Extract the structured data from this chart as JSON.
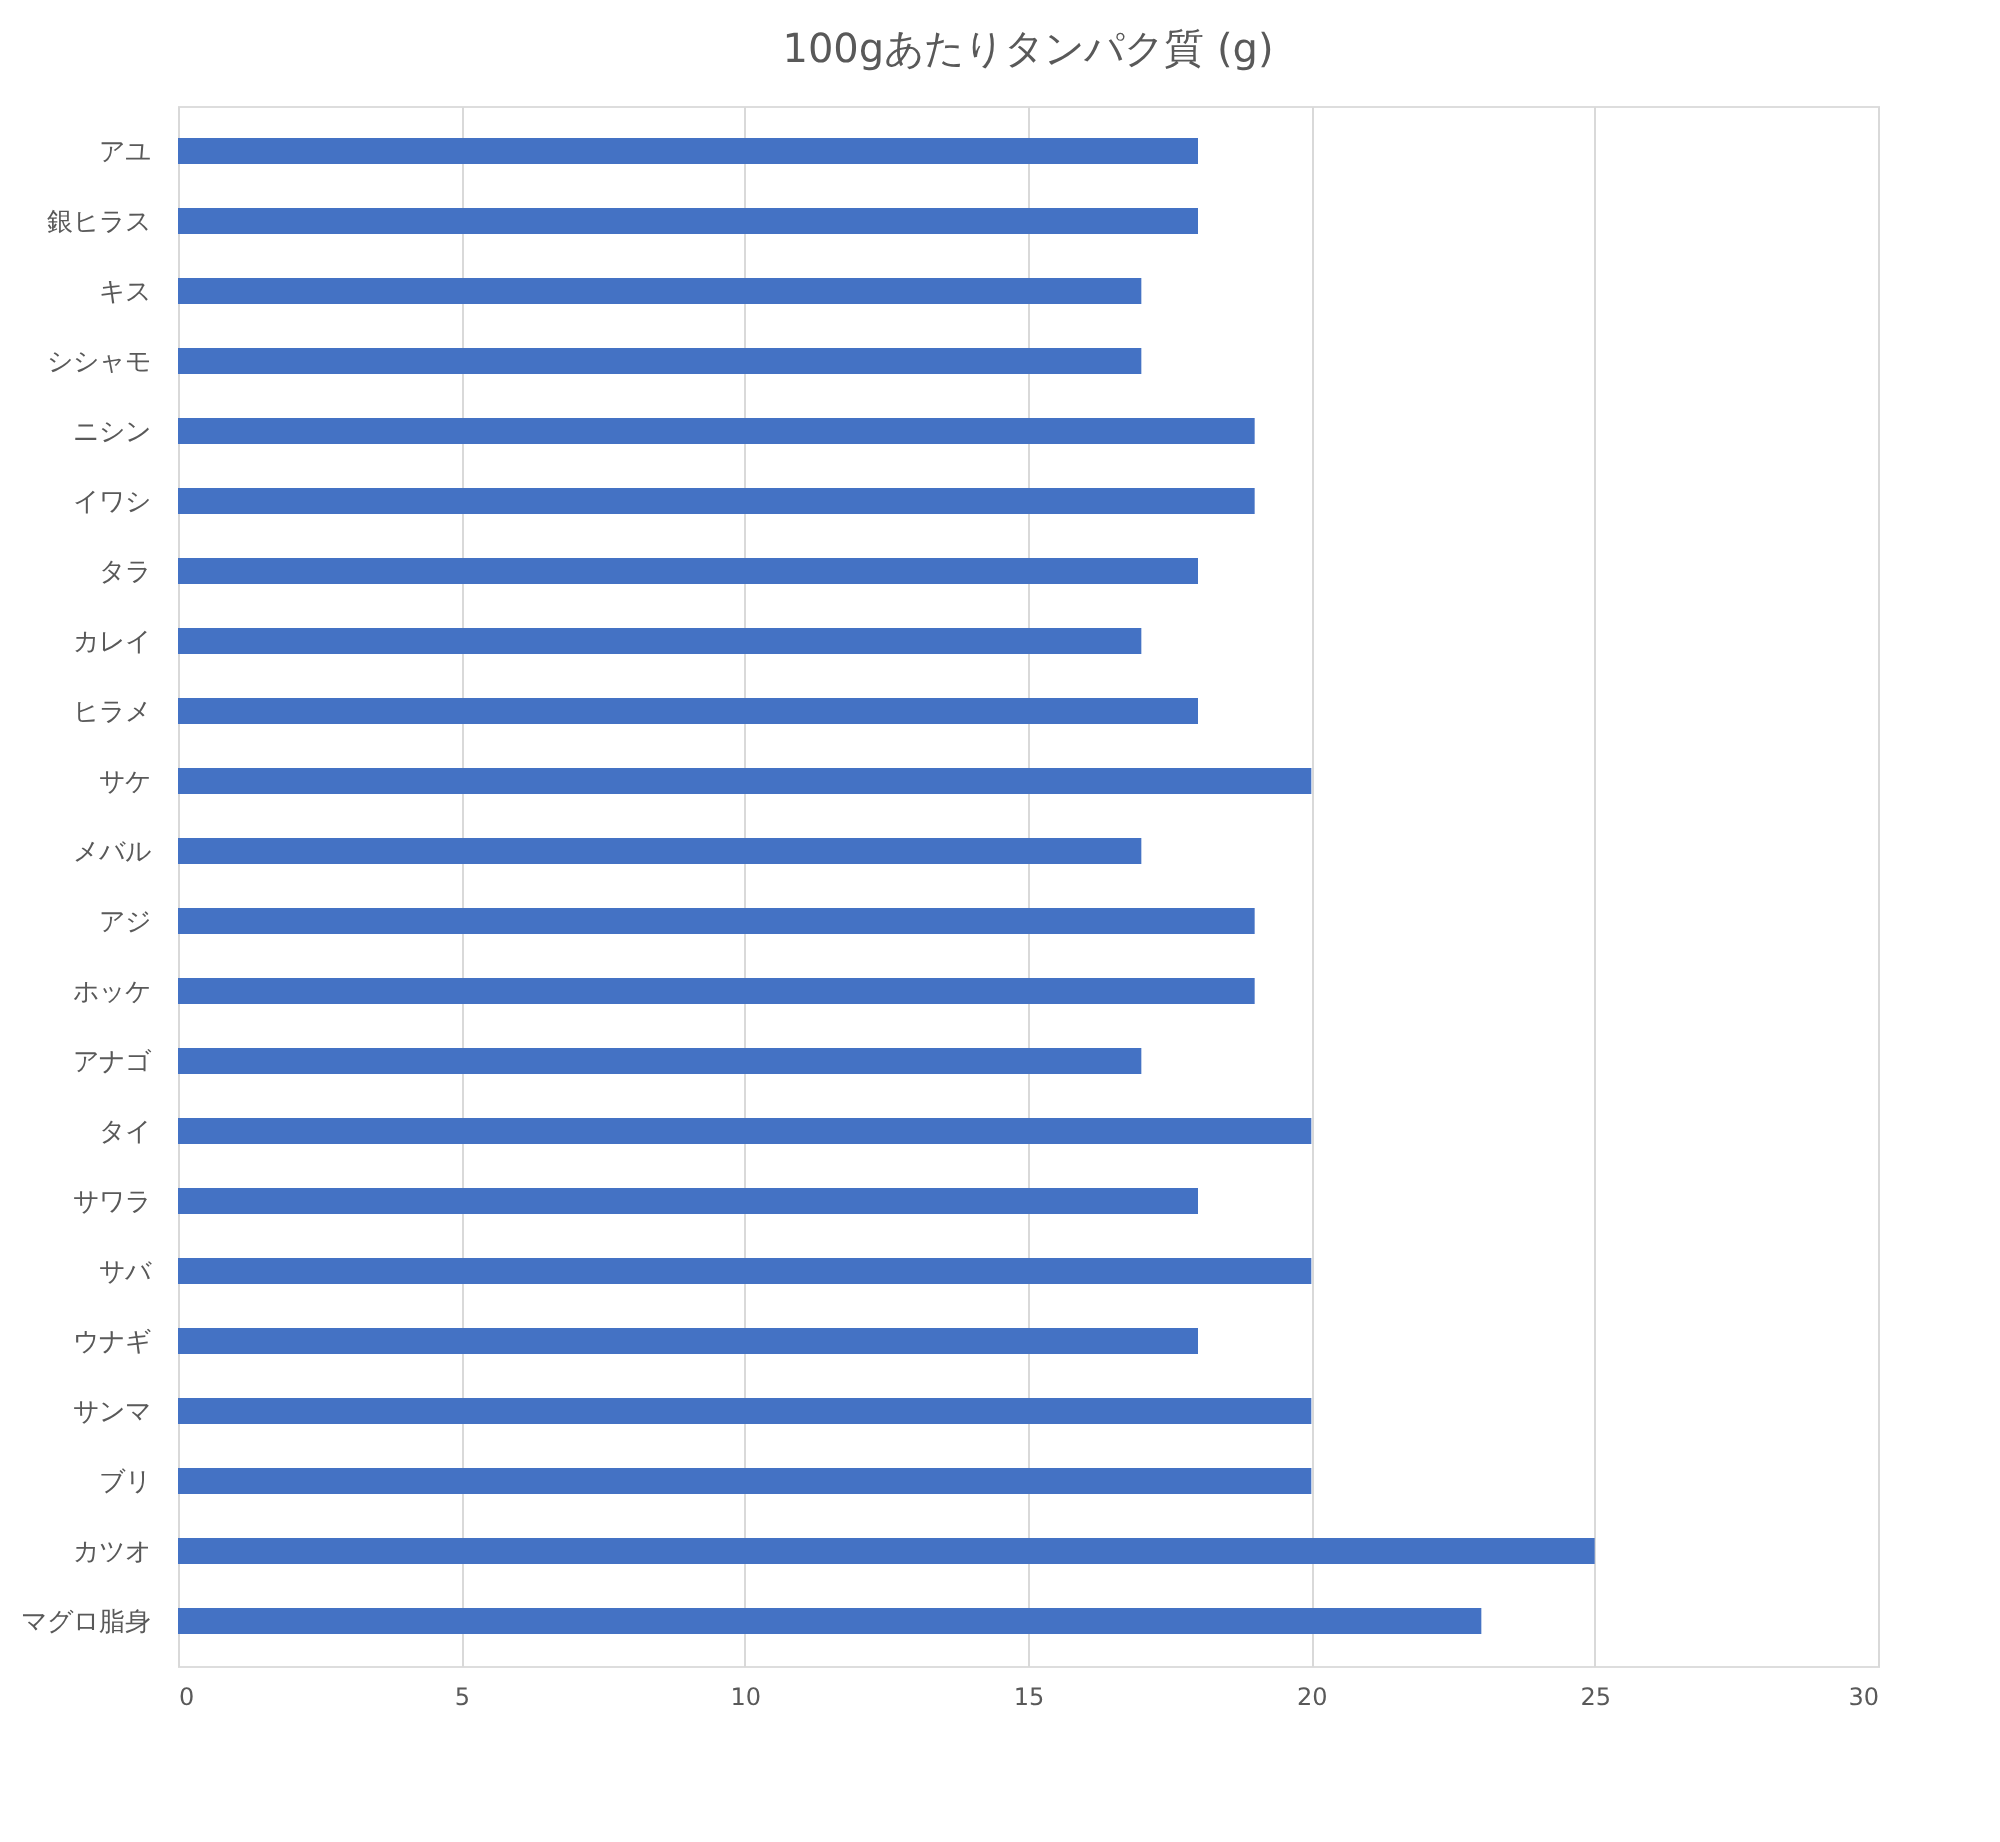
{
  "chart_data": {
    "type": "bar",
    "orientation": "horizontal",
    "title": "100gあたりタンパク質 (g)",
    "categories": [
      "アユ",
      "銀ヒラス",
      "キス",
      "シシャモ",
      "ニシン",
      "イワシ",
      "タラ",
      "カレイ",
      "ヒラメ",
      "サケ",
      "メバル",
      "アジ",
      "ホッケ",
      "アナゴ",
      "タイ",
      "サワラ",
      "サバ",
      "ウナギ",
      "サンマ",
      "ブリ",
      "カツオ",
      "マグロ脂身"
    ],
    "values": [
      18,
      18,
      17,
      17,
      19,
      19,
      18,
      17,
      18,
      20,
      17,
      19,
      19,
      17,
      20,
      18,
      20,
      18,
      20,
      20,
      25,
      23
    ],
    "color": "#4472c4",
    "xlim": [
      0,
      30
    ],
    "xticks": [
      0,
      5,
      10,
      15,
      20,
      25,
      30
    ],
    "grid": "x"
  }
}
